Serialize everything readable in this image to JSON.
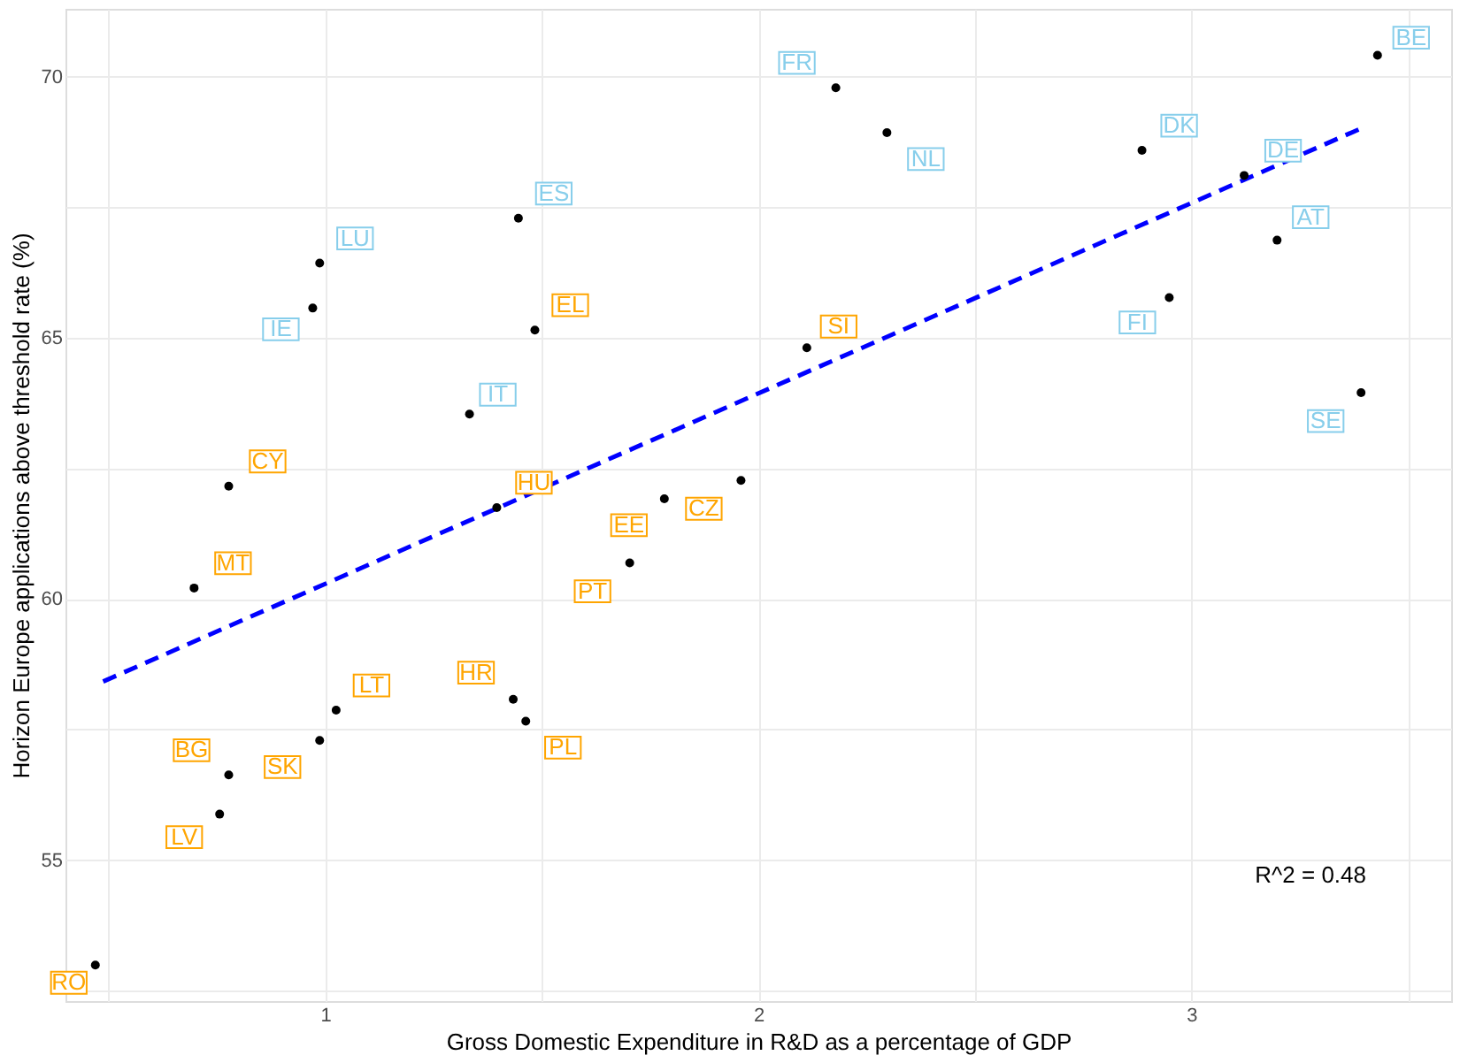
{
  "chart_data": {
    "type": "scatter",
    "xlabel": "Gross Domestic Expenditure in R&D as a percentage of GDP",
    "ylabel": "Horizon Europe applications above threshold rate (%)",
    "xlim": [
      0.4,
      3.6
    ],
    "ylim": [
      52.3,
      71.3
    ],
    "xticks": [
      {
        "value": 0.5,
        "label": null
      },
      1,
      {
        "value": 1.5,
        "label": null
      },
      2,
      {
        "value": 2.5,
        "label": null
      },
      3,
      {
        "value": 3.5,
        "label": null
      }
    ],
    "yticks": [
      {
        "value": 52.5,
        "label": null
      },
      55,
      {
        "value": 57.5,
        "label": null
      },
      60,
      {
        "value": 62.5,
        "label": null
      },
      65,
      {
        "value": 67.5,
        "label": null
      },
      70
    ],
    "grid": true,
    "legend": false,
    "marker": "circle",
    "series": [
      {
        "color": "#000000",
        "x": [
          0.987,
          0.971,
          1.446,
          1.333,
          2.179,
          2.297,
          2.886,
          3.122,
          3.198,
          2.949,
          3.392,
          3.43
        ],
        "values": [
          66.43,
          65.57,
          67.29,
          63.54,
          69.79,
          68.93,
          68.59,
          68.11,
          66.87,
          65.77,
          63.95,
          70.41
        ],
        "value_labels": [
          "LU",
          "IE",
          "ES",
          "IT",
          "FR",
          "NL",
          "DK",
          "DE",
          "AT",
          "FI",
          "SE",
          "BE"
        ]
      },
      {
        "color": "#000000",
        "x": [
          0.469,
          0.756,
          0.777,
          0.987,
          1.025,
          0.697,
          0.777,
          1.484,
          1.396,
          1.434,
          1.463,
          1.783,
          1.703,
          1.96,
          2.112
        ],
        "values": [
          52.99,
          55.88,
          56.63,
          57.29,
          57.87,
          60.21,
          62.16,
          65.15,
          61.75,
          58.08,
          57.66,
          61.92,
          60.69,
          62.27,
          64.81
        ],
        "value_labels": [
          "RO",
          "LV",
          "BG",
          "SK",
          "LT",
          "MT",
          "CY",
          "EL",
          "HU",
          "HR",
          "PL",
          "EE",
          "PT",
          "CZ",
          "SI"
        ]
      },
      {
        "type": "line",
        "color": "#0000ff",
        "line_style": "dashed",
        "marker": "none",
        "x": [
          0.487,
          3.4
        ],
        "values": [
          58.42,
          69.04
        ]
      }
    ],
    "annotations": [
      "R^2 =  0.48"
    ]
  }
}
